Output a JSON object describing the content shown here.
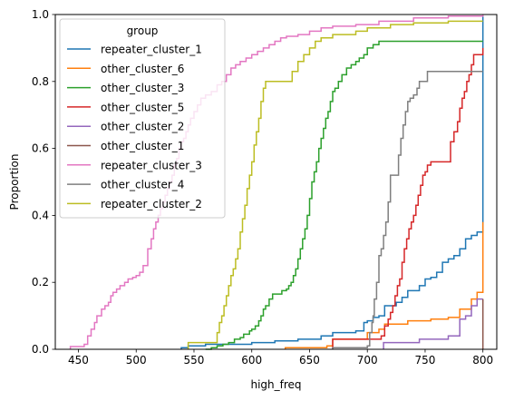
{
  "chart_data": {
    "type": "line",
    "subtype": "ecdf-step",
    "xlabel": "high_freq",
    "ylabel": "Proportion",
    "xlim": [
      430,
      812
    ],
    "ylim": [
      0,
      1
    ],
    "x_ticks": [
      450,
      500,
      550,
      600,
      650,
      700,
      750,
      800
    ],
    "y_ticks": [
      0.0,
      0.2,
      0.4,
      0.6,
      0.8,
      1.0
    ],
    "y_tick_labels": [
      "0.0",
      "0.2",
      "0.4",
      "0.6",
      "0.8",
      "1.0"
    ],
    "grid": false,
    "legend": {
      "title": "group",
      "placement": "upper-left"
    },
    "series": [
      {
        "name": "repeater_cluster_1",
        "color": "#1f77b4",
        "points": [
          [
            539,
            0
          ],
          [
            539,
            0.005
          ],
          [
            545,
            0.01
          ],
          [
            560,
            0.015
          ],
          [
            575,
            0.015
          ],
          [
            600,
            0.02
          ],
          [
            620,
            0.025
          ],
          [
            640,
            0.03
          ],
          [
            660,
            0.04
          ],
          [
            670,
            0.05
          ],
          [
            690,
            0.055
          ],
          [
            697,
            0.08
          ],
          [
            700,
            0.085
          ],
          [
            705,
            0.095
          ],
          [
            710,
            0.1
          ],
          [
            715,
            0.13
          ],
          [
            720,
            0.13
          ],
          [
            725,
            0.14
          ],
          [
            730,
            0.155
          ],
          [
            735,
            0.175
          ],
          [
            745,
            0.19
          ],
          [
            750,
            0.21
          ],
          [
            755,
            0.215
          ],
          [
            760,
            0.23
          ],
          [
            765,
            0.26
          ],
          [
            770,
            0.27
          ],
          [
            775,
            0.28
          ],
          [
            780,
            0.3
          ],
          [
            785,
            0.33
          ],
          [
            790,
            0.34
          ],
          [
            795,
            0.35
          ],
          [
            800,
            0.37
          ],
          [
            800,
            1.0
          ]
        ]
      },
      {
        "name": "other_cluster_6",
        "color": "#ff7f0e",
        "points": [
          [
            629,
            0
          ],
          [
            629,
            0.005
          ],
          [
            665,
            0.01
          ],
          [
            670,
            0.03
          ],
          [
            688,
            0.03
          ],
          [
            700,
            0.05
          ],
          [
            710,
            0.06
          ],
          [
            715,
            0.075
          ],
          [
            735,
            0.085
          ],
          [
            755,
            0.09
          ],
          [
            770,
            0.095
          ],
          [
            780,
            0.12
          ],
          [
            790,
            0.15
          ],
          [
            795,
            0.17
          ],
          [
            800,
            0.18
          ],
          [
            800,
            0.38
          ]
        ]
      },
      {
        "name": "other_cluster_3",
        "color": "#2ca02c",
        "points": [
          [
            560,
            0
          ],
          [
            565,
            0.005
          ],
          [
            570,
            0.01
          ],
          [
            575,
            0.015
          ],
          [
            580,
            0.02
          ],
          [
            585,
            0.03
          ],
          [
            590,
            0.035
          ],
          [
            593,
            0.045
          ],
          [
            598,
            0.055
          ],
          [
            600,
            0.06
          ],
          [
            603,
            0.07
          ],
          [
            606,
            0.085
          ],
          [
            608,
            0.1
          ],
          [
            610,
            0.12
          ],
          [
            612,
            0.13
          ],
          [
            615,
            0.15
          ],
          [
            618,
            0.165
          ],
          [
            622,
            0.165
          ],
          [
            626,
            0.175
          ],
          [
            630,
            0.18
          ],
          [
            632,
            0.19
          ],
          [
            634,
            0.2
          ],
          [
            636,
            0.22
          ],
          [
            638,
            0.24
          ],
          [
            640,
            0.27
          ],
          [
            642,
            0.3
          ],
          [
            644,
            0.33
          ],
          [
            646,
            0.36
          ],
          [
            648,
            0.4
          ],
          [
            650,
            0.45
          ],
          [
            652,
            0.5
          ],
          [
            654,
            0.53
          ],
          [
            656,
            0.56
          ],
          [
            658,
            0.6
          ],
          [
            660,
            0.63
          ],
          [
            662,
            0.66
          ],
          [
            664,
            0.69
          ],
          [
            666,
            0.71
          ],
          [
            668,
            0.74
          ],
          [
            670,
            0.77
          ],
          [
            672,
            0.78
          ],
          [
            675,
            0.8
          ],
          [
            678,
            0.82
          ],
          [
            682,
            0.84
          ],
          [
            686,
            0.85
          ],
          [
            690,
            0.86
          ],
          [
            693,
            0.87
          ],
          [
            697,
            0.88
          ],
          [
            700,
            0.9
          ],
          [
            705,
            0.91
          ],
          [
            710,
            0.92
          ],
          [
            800,
            0.92
          ]
        ]
      },
      {
        "name": "other_cluster_5",
        "color": "#d62728",
        "points": [
          [
            670,
            0
          ],
          [
            670,
            0.03
          ],
          [
            685,
            0.03
          ],
          [
            700,
            0.03
          ],
          [
            712,
            0.04
          ],
          [
            715,
            0.07
          ],
          [
            718,
            0.09
          ],
          [
            720,
            0.11
          ],
          [
            722,
            0.13
          ],
          [
            724,
            0.16
          ],
          [
            726,
            0.19
          ],
          [
            728,
            0.21
          ],
          [
            730,
            0.26
          ],
          [
            732,
            0.3
          ],
          [
            734,
            0.33
          ],
          [
            736,
            0.36
          ],
          [
            738,
            0.38
          ],
          [
            740,
            0.4
          ],
          [
            742,
            0.43
          ],
          [
            744,
            0.46
          ],
          [
            746,
            0.49
          ],
          [
            748,
            0.52
          ],
          [
            750,
            0.53
          ],
          [
            752,
            0.55
          ],
          [
            755,
            0.56
          ],
          [
            770,
            0.56
          ],
          [
            772,
            0.62
          ],
          [
            775,
            0.65
          ],
          [
            778,
            0.68
          ],
          [
            780,
            0.72
          ],
          [
            782,
            0.75
          ],
          [
            784,
            0.77
          ],
          [
            786,
            0.8
          ],
          [
            788,
            0.82
          ],
          [
            790,
            0.85
          ],
          [
            792,
            0.88
          ],
          [
            800,
            0.9
          ]
        ]
      },
      {
        "name": "other_cluster_2",
        "color": "#9467bd",
        "points": [
          [
            714,
            0
          ],
          [
            714,
            0.02
          ],
          [
            740,
            0.02
          ],
          [
            745,
            0.03
          ],
          [
            755,
            0.03
          ],
          [
            770,
            0.04
          ],
          [
            780,
            0.09
          ],
          [
            785,
            0.1
          ],
          [
            790,
            0.13
          ],
          [
            795,
            0.15
          ],
          [
            800,
            0.15
          ]
        ]
      },
      {
        "name": "other_cluster_1",
        "color": "#8c564b",
        "points": [
          [
            800,
            0
          ],
          [
            800,
            0.15
          ]
        ]
      },
      {
        "name": "repeater_cluster_3",
        "color": "#e377c2",
        "points": [
          [
            443,
            0
          ],
          [
            443,
            0.008
          ],
          [
            455,
            0.015
          ],
          [
            458,
            0.04
          ],
          [
            461,
            0.06
          ],
          [
            464,
            0.08
          ],
          [
            466,
            0.1
          ],
          [
            470,
            0.12
          ],
          [
            473,
            0.13
          ],
          [
            476,
            0.14
          ],
          [
            478,
            0.16
          ],
          [
            480,
            0.17
          ],
          [
            483,
            0.18
          ],
          [
            486,
            0.19
          ],
          [
            490,
            0.2
          ],
          [
            493,
            0.21
          ],
          [
            497,
            0.215
          ],
          [
            500,
            0.22
          ],
          [
            503,
            0.23
          ],
          [
            506,
            0.25
          ],
          [
            510,
            0.3
          ],
          [
            513,
            0.33
          ],
          [
            515,
            0.36
          ],
          [
            517,
            0.38
          ],
          [
            519,
            0.4
          ],
          [
            521,
            0.42
          ],
          [
            523,
            0.44
          ],
          [
            525,
            0.46
          ],
          [
            527,
            0.48
          ],
          [
            529,
            0.5
          ],
          [
            531,
            0.52
          ],
          [
            533,
            0.55
          ],
          [
            535,
            0.57
          ],
          [
            537,
            0.6
          ],
          [
            539,
            0.62
          ],
          [
            541,
            0.63
          ],
          [
            543,
            0.65
          ],
          [
            545,
            0.67
          ],
          [
            547,
            0.69
          ],
          [
            550,
            0.71
          ],
          [
            553,
            0.73
          ],
          [
            556,
            0.75
          ],
          [
            560,
            0.76
          ],
          [
            565,
            0.77
          ],
          [
            570,
            0.79
          ],
          [
            574,
            0.8
          ],
          [
            578,
            0.82
          ],
          [
            582,
            0.84
          ],
          [
            586,
            0.85
          ],
          [
            590,
            0.86
          ],
          [
            595,
            0.87
          ],
          [
            600,
            0.88
          ],
          [
            605,
            0.89
          ],
          [
            610,
            0.9
          ],
          [
            615,
            0.91
          ],
          [
            620,
            0.92
          ],
          [
            625,
            0.93
          ],
          [
            630,
            0.935
          ],
          [
            640,
            0.94
          ],
          [
            650,
            0.95
          ],
          [
            660,
            0.96
          ],
          [
            670,
            0.965
          ],
          [
            690,
            0.97
          ],
          [
            710,
            0.98
          ],
          [
            740,
            0.99
          ],
          [
            770,
            0.995
          ],
          [
            800,
            1.0
          ]
        ]
      },
      {
        "name": "other_cluster_4",
        "color": "#7f7f7f",
        "points": [
          [
            670,
            0
          ],
          [
            670,
            0.005
          ],
          [
            697,
            0.005
          ],
          [
            700,
            0.01
          ],
          [
            702,
            0.05
          ],
          [
            704,
            0.08
          ],
          [
            705,
            0.1
          ],
          [
            706,
            0.15
          ],
          [
            708,
            0.2
          ],
          [
            710,
            0.28
          ],
          [
            712,
            0.3
          ],
          [
            714,
            0.34
          ],
          [
            716,
            0.38
          ],
          [
            718,
            0.44
          ],
          [
            720,
            0.52
          ],
          [
            725,
            0.52
          ],
          [
            727,
            0.58
          ],
          [
            729,
            0.63
          ],
          [
            731,
            0.67
          ],
          [
            733,
            0.71
          ],
          [
            735,
            0.74
          ],
          [
            737,
            0.75
          ],
          [
            740,
            0.76
          ],
          [
            743,
            0.78
          ],
          [
            745,
            0.8
          ],
          [
            748,
            0.8
          ],
          [
            752,
            0.83
          ],
          [
            800,
            0.83
          ]
        ]
      },
      {
        "name": "repeater_cluster_2",
        "color": "#bcbd22",
        "points": [
          [
            545,
            0
          ],
          [
            545,
            0.02
          ],
          [
            567,
            0.02
          ],
          [
            570,
            0.05
          ],
          [
            572,
            0.08
          ],
          [
            574,
            0.1
          ],
          [
            576,
            0.13
          ],
          [
            578,
            0.16
          ],
          [
            580,
            0.19
          ],
          [
            582,
            0.22
          ],
          [
            584,
            0.24
          ],
          [
            586,
            0.27
          ],
          [
            588,
            0.3
          ],
          [
            590,
            0.35
          ],
          [
            592,
            0.39
          ],
          [
            594,
            0.43
          ],
          [
            596,
            0.48
          ],
          [
            598,
            0.52
          ],
          [
            600,
            0.56
          ],
          [
            602,
            0.61
          ],
          [
            604,
            0.65
          ],
          [
            606,
            0.69
          ],
          [
            608,
            0.74
          ],
          [
            610,
            0.78
          ],
          [
            612,
            0.8
          ],
          [
            630,
            0.8
          ],
          [
            635,
            0.83
          ],
          [
            640,
            0.86
          ],
          [
            645,
            0.88
          ],
          [
            650,
            0.9
          ],
          [
            655,
            0.92
          ],
          [
            660,
            0.93
          ],
          [
            670,
            0.94
          ],
          [
            690,
            0.95
          ],
          [
            700,
            0.96
          ],
          [
            720,
            0.97
          ],
          [
            740,
            0.975
          ],
          [
            770,
            0.98
          ],
          [
            800,
            0.98
          ]
        ]
      }
    ]
  }
}
